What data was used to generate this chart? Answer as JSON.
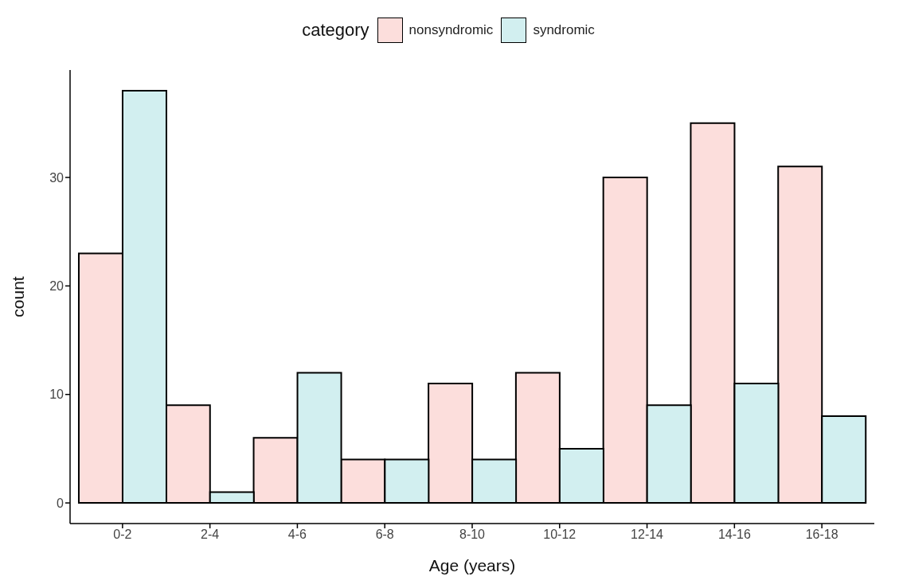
{
  "chart_data": {
    "type": "bar",
    "xlabel": "Age (years)",
    "ylabel": "count",
    "legend_title": "category",
    "legend": "top",
    "categories": [
      "0-2",
      "2-4",
      "4-6",
      "6-8",
      "8-10",
      "10-12",
      "12-14",
      "14-16",
      "16-18"
    ],
    "series": [
      {
        "name": "nonsyndromic",
        "color": "#fcdedc",
        "values": [
          23,
          9,
          6,
          4,
          11,
          12,
          30,
          35,
          31
        ]
      },
      {
        "name": "syndromic",
        "color": "#d2eff0",
        "values": [
          38,
          1,
          12,
          4,
          4,
          5,
          9,
          11,
          8
        ]
      }
    ],
    "ylim": [
      -1.9,
      39.9
    ],
    "yticks": [
      0,
      10,
      20,
      30
    ],
    "grid": false
  }
}
